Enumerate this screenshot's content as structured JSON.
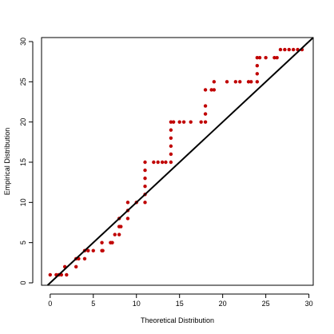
{
  "chart_data": {
    "type": "scatter",
    "title": "",
    "xlabel": "Theoretical Distribution",
    "ylabel": "Empirical Distribution",
    "xlim": [
      -1,
      30.5
    ],
    "ylim": [
      -0.3,
      30.5
    ],
    "xticks": [
      0,
      5,
      10,
      15,
      20,
      25,
      30
    ],
    "yticks": [
      0,
      5,
      10,
      15,
      20,
      25,
      30
    ],
    "xtick_labels": [
      "0",
      "5",
      "10",
      "15",
      "20",
      "25",
      "30"
    ],
    "ytick_labels": [
      "0",
      "5",
      "10",
      "15",
      "20",
      "25",
      "30"
    ],
    "grid": false,
    "box": true,
    "point_color": "#C00000",
    "line_color": "#000000",
    "reference_line": {
      "slope": 1,
      "intercept": 0
    },
    "series": [
      {
        "points": [
          [
            0,
            1
          ],
          [
            0.7,
            1
          ],
          [
            1,
            1
          ],
          [
            1.3,
            1
          ],
          [
            1.9,
            1
          ],
          [
            1.7,
            2
          ],
          [
            3,
            2
          ],
          [
            3,
            3
          ],
          [
            3.3,
            3
          ],
          [
            4,
            3
          ],
          [
            4,
            4
          ],
          [
            4.4,
            4
          ],
          [
            5,
            4
          ],
          [
            6,
            4
          ],
          [
            6.1,
            4
          ],
          [
            6,
            5
          ],
          [
            7,
            5
          ],
          [
            7.2,
            5
          ],
          [
            7.5,
            6
          ],
          [
            8,
            6
          ],
          [
            8,
            7
          ],
          [
            8.2,
            7
          ],
          [
            8,
            8
          ],
          [
            9,
            8
          ],
          [
            9,
            9
          ],
          [
            9,
            10
          ],
          [
            10,
            10
          ],
          [
            11,
            10
          ],
          [
            11,
            11
          ],
          [
            11,
            12
          ],
          [
            11,
            13
          ],
          [
            11,
            14
          ],
          [
            11,
            15
          ],
          [
            12,
            15
          ],
          [
            12.5,
            15
          ],
          [
            13,
            15
          ],
          [
            13.4,
            15
          ],
          [
            14,
            15
          ],
          [
            14,
            16
          ],
          [
            14,
            17
          ],
          [
            14,
            18
          ],
          [
            14,
            19
          ],
          [
            14,
            20
          ],
          [
            14.3,
            20
          ],
          [
            15,
            20
          ],
          [
            15.5,
            20
          ],
          [
            16.3,
            20
          ],
          [
            17.5,
            20
          ],
          [
            18,
            20
          ],
          [
            18,
            21
          ],
          [
            18,
            22
          ],
          [
            18,
            24
          ],
          [
            18.7,
            24
          ],
          [
            19,
            24
          ],
          [
            19,
            25
          ],
          [
            20.5,
            25
          ],
          [
            21.5,
            25
          ],
          [
            22,
            25
          ],
          [
            23,
            25
          ],
          [
            23.3,
            25
          ],
          [
            24,
            25
          ],
          [
            24,
            26
          ],
          [
            24,
            27
          ],
          [
            24,
            28
          ],
          [
            24.3,
            28
          ],
          [
            25,
            28
          ],
          [
            26,
            28
          ],
          [
            26.3,
            28
          ],
          [
            26.7,
            29
          ],
          [
            27.2,
            29
          ],
          [
            27.7,
            29
          ],
          [
            28.2,
            29
          ],
          [
            28.7,
            29
          ],
          [
            29.2,
            29
          ]
        ]
      }
    ]
  }
}
